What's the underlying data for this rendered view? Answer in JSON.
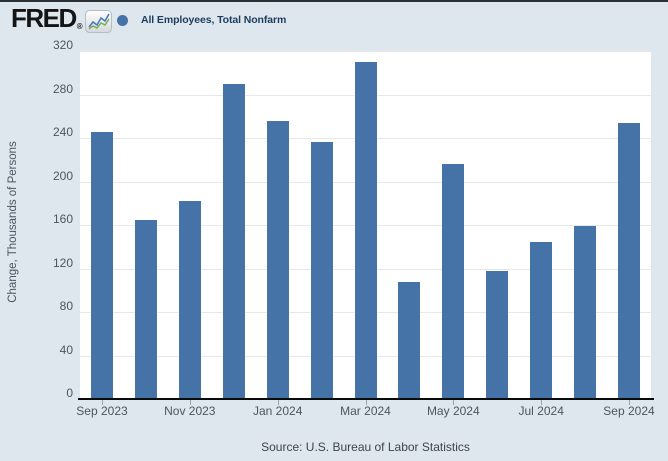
{
  "header": {
    "logo_text": "FRED",
    "registered_mark": "®",
    "legend": {
      "marker_color": "#4572a7",
      "label": "All Employees, Total Nonfarm"
    }
  },
  "colors": {
    "background": "#dee6ee",
    "plot_background": "#ffffff",
    "bar": "#4572a7",
    "gridline": "#e8e8e8",
    "axis_line": "#0a0a0a"
  },
  "chart_data": {
    "type": "bar",
    "title": "All Employees, Total Nonfarm",
    "ylabel": "Change, Thousands of Persons",
    "xlabel": "",
    "categories": [
      "Sep 2023",
      "Oct 2023",
      "Nov 2023",
      "Dec 2023",
      "Jan 2024",
      "Feb 2024",
      "Mar 2024",
      "Apr 2024",
      "May 2024",
      "Jun 2024",
      "Jul 2024",
      "Aug 2024",
      "Sep 2024"
    ],
    "values": [
      246,
      165,
      182,
      290,
      256,
      236,
      310,
      108,
      216,
      118,
      144,
      159,
      254
    ],
    "x_tick_labels": [
      "Sep 2023",
      "Nov 2023",
      "Jan 2024",
      "Mar 2024",
      "May 2024",
      "Jul 2024",
      "Sep 2024"
    ],
    "x_tick_every": 2,
    "y_ticks": [
      0,
      40,
      80,
      120,
      160,
      200,
      240,
      280,
      320
    ],
    "ylim": [
      0,
      320
    ],
    "bar_color": "#4572a7",
    "grid": true,
    "legend_position": "top-left"
  },
  "footer": {
    "source": "Source: U.S. Bureau of Labor Statistics"
  }
}
